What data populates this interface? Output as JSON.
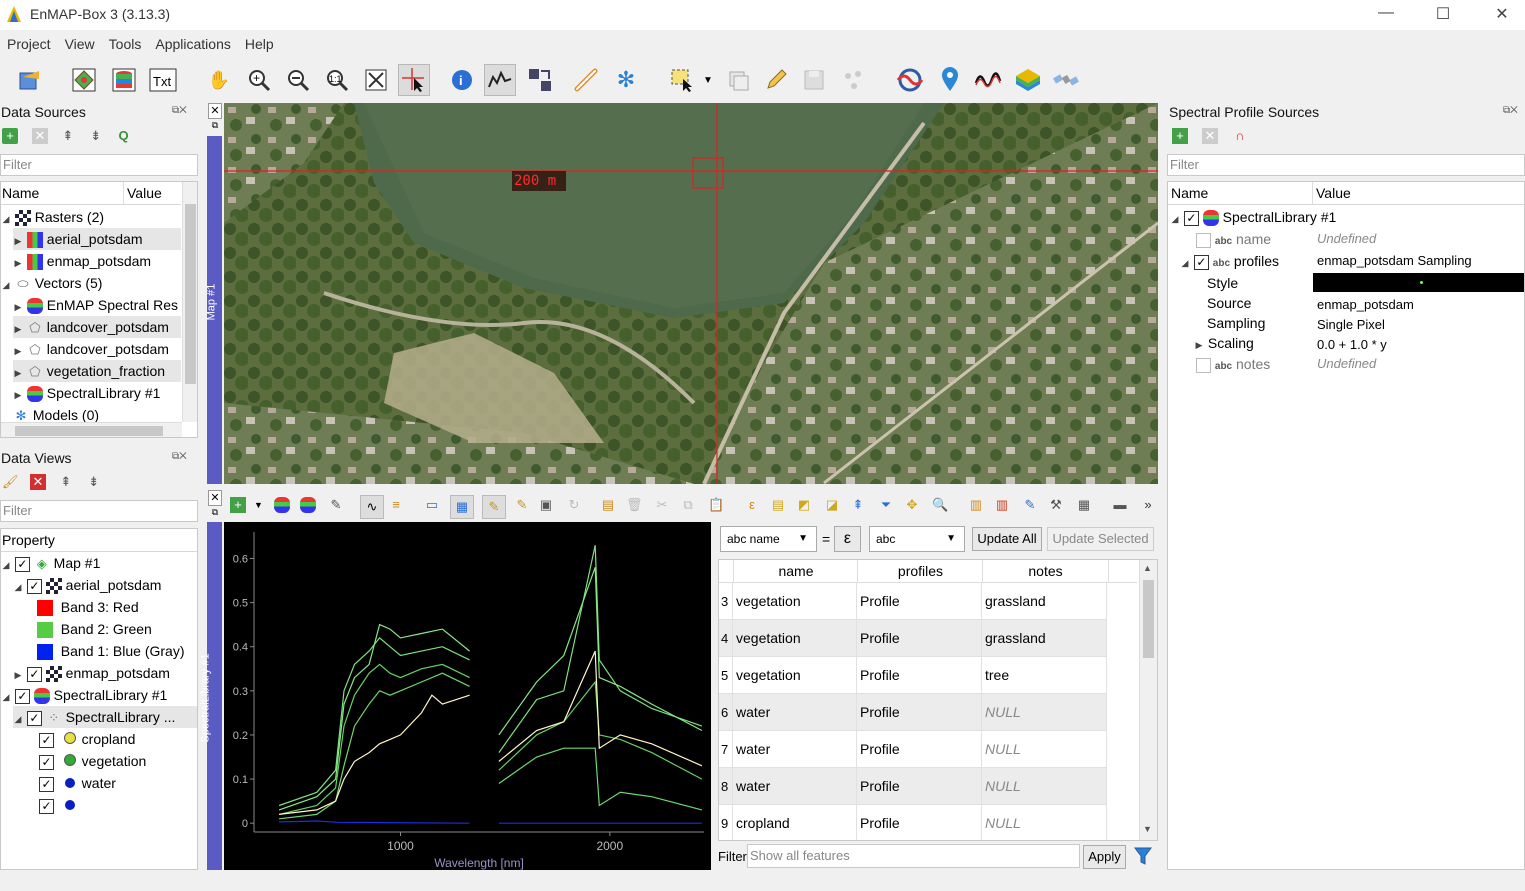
{
  "window": {
    "title": "EnMAP-Box 3 (3.13.3)",
    "minimize": "—",
    "maximize": "☐",
    "close": "✕"
  },
  "menu": [
    "Project",
    "View",
    "Tools",
    "Applications",
    "Help"
  ],
  "data_sources": {
    "title": "Data Sources",
    "filter_placeholder": "Filter",
    "columns": [
      "Name",
      "Value"
    ],
    "items": [
      {
        "label": "Rasters (2)",
        "level": 0,
        "expanded": true
      },
      {
        "label": "aerial_potsdam",
        "level": 1
      },
      {
        "label": "enmap_potsdam",
        "level": 1
      },
      {
        "label": "Vectors (5)",
        "level": 0,
        "expanded": true
      },
      {
        "label": "EnMAP Spectral Res",
        "level": 1
      },
      {
        "label": "landcover_potsdam",
        "level": 1
      },
      {
        "label": "landcover_potsdam",
        "level": 1
      },
      {
        "label": "vegetation_fraction",
        "level": 1
      },
      {
        "label": "SpectralLibrary #1",
        "level": 1
      },
      {
        "label": "Models (0)",
        "level": 0
      }
    ]
  },
  "data_views": {
    "title": "Data Views",
    "filter_placeholder": "Filter",
    "column": "Property",
    "items": [
      {
        "label": "Map #1",
        "level": 0
      },
      {
        "label": "aerial_potsdam",
        "level": 1
      },
      {
        "label": "Band 3: Red",
        "level": 2,
        "color": "#ff0000"
      },
      {
        "label": "Band 2: Green",
        "level": 2,
        "color": "#55cc44"
      },
      {
        "label": "Band 1: Blue (Gray)",
        "level": 2,
        "color": "#0022ee"
      },
      {
        "label": "enmap_potsdam",
        "level": 1
      },
      {
        "label": "SpectralLibrary #1",
        "level": 0
      },
      {
        "label": "SpectralLibrary ...",
        "level": 1
      },
      {
        "label": "cropland",
        "level": 2,
        "color": "#e8e040"
      },
      {
        "label": "vegetation",
        "level": 2,
        "color": "#33aa33"
      },
      {
        "label": "water",
        "level": 2,
        "color": "#0a1fbf"
      },
      {
        "label": "",
        "level": 2,
        "color": "#0a1fbf"
      }
    ]
  },
  "map": {
    "dock_label": "Map #1",
    "scale": "200 m"
  },
  "spectral_dock": {
    "label": "SpectralLibrary #1"
  },
  "chart_data": {
    "type": "line",
    "xlabel": "Wavelength [nm]",
    "ylabel": "",
    "x_ticks": [
      1000,
      2000
    ],
    "y_ticks": [
      0,
      0.1,
      0.2,
      0.3,
      0.4,
      0.5,
      0.6
    ],
    "xlim": [
      300,
      2450
    ],
    "ylim": [
      -0.02,
      0.66
    ],
    "series": [
      {
        "color": "#7ee07e",
        "points": [
          [
            420,
            0.04
          ],
          [
            600,
            0.07
          ],
          [
            690,
            0.12
          ],
          [
            730,
            0.3
          ],
          [
            780,
            0.36
          ],
          [
            850,
            0.39
          ],
          [
            900,
            0.42
          ],
          [
            950,
            0.4
          ],
          [
            1000,
            0.38
          ],
          [
            1100,
            0.39
          ],
          [
            1200,
            0.4
          ],
          [
            1330,
            0.37
          ],
          [
            1470,
            0.16
          ],
          [
            1650,
            0.28
          ],
          [
            1780,
            0.3
          ],
          [
            1930,
            0.63
          ],
          [
            1950,
            0.37
          ],
          [
            2050,
            0.3
          ],
          [
            2200,
            0.26
          ],
          [
            2440,
            0.22
          ]
        ]
      },
      {
        "color": "#88e888",
        "points": [
          [
            420,
            0.03
          ],
          [
            600,
            0.06
          ],
          [
            690,
            0.1
          ],
          [
            730,
            0.27
          ],
          [
            780,
            0.33
          ],
          [
            850,
            0.36
          ],
          [
            900,
            0.45
          ],
          [
            950,
            0.44
          ],
          [
            1000,
            0.42
          ],
          [
            1100,
            0.43
          ],
          [
            1200,
            0.44
          ],
          [
            1330,
            0.39
          ],
          [
            1470,
            0.2
          ],
          [
            1650,
            0.32
          ],
          [
            1780,
            0.38
          ],
          [
            1930,
            0.58
          ],
          [
            1950,
            0.33
          ],
          [
            2050,
            0.31
          ],
          [
            2200,
            0.27
          ],
          [
            2440,
            0.21
          ]
        ]
      },
      {
        "color": "#66d066",
        "points": [
          [
            420,
            0.02
          ],
          [
            600,
            0.04
          ],
          [
            690,
            0.08
          ],
          [
            730,
            0.22
          ],
          [
            780,
            0.29
          ],
          [
            850,
            0.34
          ],
          [
            900,
            0.36
          ],
          [
            950,
            0.34
          ],
          [
            1000,
            0.33
          ],
          [
            1100,
            0.35
          ],
          [
            1200,
            0.36
          ],
          [
            1330,
            0.33
          ],
          [
            1470,
            0.12
          ],
          [
            1650,
            0.2
          ],
          [
            1780,
            0.23
          ],
          [
            1930,
            0.32
          ],
          [
            1950,
            0.2
          ],
          [
            2050,
            0.19
          ],
          [
            2200,
            0.16
          ],
          [
            2440,
            0.1
          ]
        ]
      },
      {
        "color": "#70d870",
        "points": [
          [
            420,
            0.01
          ],
          [
            600,
            0.02
          ],
          [
            690,
            0.05
          ],
          [
            730,
            0.13
          ],
          [
            780,
            0.22
          ],
          [
            850,
            0.27
          ],
          [
            900,
            0.3
          ],
          [
            950,
            0.29
          ],
          [
            1000,
            0.3
          ],
          [
            1100,
            0.32
          ],
          [
            1200,
            0.34
          ],
          [
            1330,
            0.31
          ],
          [
            1470,
            0.09
          ],
          [
            1650,
            0.15
          ],
          [
            1780,
            0.17
          ],
          [
            1930,
            0.17
          ],
          [
            1950,
            0.04
          ],
          [
            2050,
            0.07
          ],
          [
            2200,
            0.06
          ],
          [
            2440,
            0.03
          ]
        ]
      },
      {
        "color": "#fff6c8",
        "points": [
          [
            420,
            0.02
          ],
          [
            600,
            0.03
          ],
          [
            690,
            0.05
          ],
          [
            730,
            0.1
          ],
          [
            780,
            0.14
          ],
          [
            850,
            0.16
          ],
          [
            900,
            0.18
          ],
          [
            950,
            0.19
          ],
          [
            1000,
            0.2
          ],
          [
            1100,
            0.25
          ],
          [
            1150,
            0.29
          ],
          [
            1200,
            0.27
          ],
          [
            1330,
            0.29
          ],
          [
            1470,
            0.14
          ],
          [
            1650,
            0.21
          ],
          [
            1780,
            0.23
          ],
          [
            1930,
            0.39
          ],
          [
            1950,
            0.17
          ],
          [
            2050,
            0.2
          ],
          [
            2200,
            0.18
          ],
          [
            2440,
            0.13
          ]
        ]
      },
      {
        "color": "#1e2de0",
        "points": [
          [
            420,
            0.003
          ],
          [
            600,
            0.005
          ],
          [
            700,
            0.002
          ],
          [
            1330,
            0.0
          ],
          [
            1470,
            0.0
          ],
          [
            2440,
            0.0
          ]
        ]
      }
    ]
  },
  "attr_table": {
    "field_combo": "abc name",
    "eq": "=",
    "expr_icon": "ε",
    "value_combo": "abc",
    "update_all": "Update All",
    "update_selected": "Update Selected",
    "columns": [
      "name",
      "profiles",
      "notes"
    ],
    "rows": [
      {
        "id": "3",
        "name": "vegetation",
        "profiles": "Profile",
        "notes": "grassland",
        "null": false
      },
      {
        "id": "4",
        "name": "vegetation",
        "profiles": "Profile",
        "notes": "grassland",
        "null": false
      },
      {
        "id": "5",
        "name": "vegetation",
        "profiles": "Profile",
        "notes": "tree",
        "null": false
      },
      {
        "id": "6",
        "name": "water",
        "profiles": "Profile",
        "notes": "NULL",
        "null": true
      },
      {
        "id": "7",
        "name": "water",
        "profiles": "Profile",
        "notes": "NULL",
        "null": true
      },
      {
        "id": "8",
        "name": "water",
        "profiles": "Profile",
        "notes": "NULL",
        "null": true
      },
      {
        "id": "9",
        "name": "cropland",
        "profiles": "Profile",
        "notes": "NULL",
        "null": true
      }
    ],
    "filter_label": "Filter",
    "filter_placeholder": "Show all features",
    "apply": "Apply"
  },
  "profile_sources": {
    "title": "Spectral Profile Sources",
    "filter_placeholder": "Filter",
    "columns": [
      "Name",
      "Value"
    ],
    "root": "SpectralLibrary #1",
    "abc": "abc",
    "rows": {
      "name_label": "name",
      "name_value": "Undefined",
      "profiles_label": "profiles",
      "profiles_value": "enmap_potsdam Sampling",
      "style_label": "Style",
      "source_label": "Source",
      "source_value": "enmap_potsdam",
      "sampling_label": "Sampling",
      "sampling_value": "Single Pixel",
      "scaling_label": "Scaling",
      "scaling_value": "0.0 + 1.0 * y",
      "notes_label": "notes",
      "notes_value": "Undefined"
    }
  }
}
